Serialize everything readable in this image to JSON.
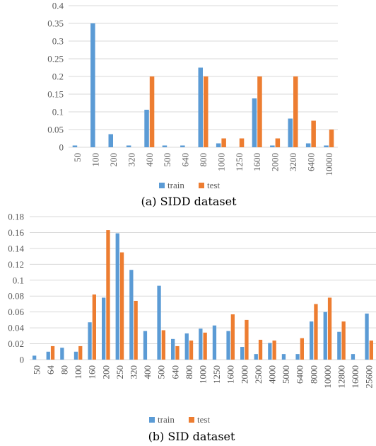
{
  "colors": {
    "train": "#5b9bd5",
    "test": "#ed7d31",
    "grid": "#d9d9d9",
    "text": "#595959"
  },
  "chart_data": [
    {
      "type": "bar",
      "caption": "(a) SIDD dataset",
      "categories": [
        "50",
        "100",
        "200",
        "320",
        "400",
        "500",
        "640",
        "800",
        "1000",
        "1250",
        "1600",
        "2000",
        "3200",
        "6400",
        "10000"
      ],
      "series": [
        {
          "name": "train",
          "values": [
            0.005,
            0.35,
            0.037,
            0.005,
            0.106,
            0.005,
            0.005,
            0.225,
            0.011,
            0,
            0.138,
            0.005,
            0.081,
            0.011,
            0.005
          ]
        },
        {
          "name": "test",
          "values": [
            0,
            0,
            0,
            0,
            0.2,
            0,
            0,
            0.2,
            0.025,
            0.025,
            0.2,
            0.025,
            0.2,
            0.075,
            0.05
          ]
        }
      ],
      "ylim": [
        0,
        0.4
      ],
      "yticks": [
        "0",
        "0.05",
        "0.1",
        "0.15",
        "0.2",
        "0.25",
        "0.3",
        "0.35",
        "0.4"
      ],
      "grid": true,
      "legend": "bottom"
    },
    {
      "type": "bar",
      "caption": "(b) SID dataset",
      "categories": [
        "50",
        "64",
        "80",
        "100",
        "160",
        "200",
        "250",
        "320",
        "400",
        "500",
        "640",
        "800",
        "1000",
        "1250",
        "1600",
        "2000",
        "2500",
        "4000",
        "5000",
        "6400",
        "8000",
        "10000",
        "12800",
        "16000",
        "25600"
      ],
      "series": [
        {
          "name": "train",
          "values": [
            0.005,
            0.01,
            0.015,
            0.01,
            0.047,
            0.078,
            0.159,
            0.113,
            0.036,
            0.093,
            0.026,
            0.033,
            0.039,
            0.043,
            0.036,
            0.016,
            0.007,
            0.021,
            0.007,
            0.007,
            0.048,
            0.06,
            0.035,
            0.007,
            0.058
          ]
        },
        {
          "name": "test",
          "values": [
            0,
            0.017,
            0,
            0.017,
            0.082,
            0.163,
            0.135,
            0.074,
            0,
            0.037,
            0.017,
            0.024,
            0.034,
            0,
            0.057,
            0.05,
            0.025,
            0.024,
            0,
            0.027,
            0.07,
            0.078,
            0.048,
            0,
            0.024
          ]
        }
      ],
      "ylim": [
        0,
        0.18
      ],
      "yticks": [
        "0",
        "0.02",
        "0.04",
        "0.06",
        "0.08",
        "0.1",
        "0.12",
        "0.14",
        "0.16",
        "0.18"
      ],
      "grid": true,
      "legend": "bottom"
    }
  ]
}
